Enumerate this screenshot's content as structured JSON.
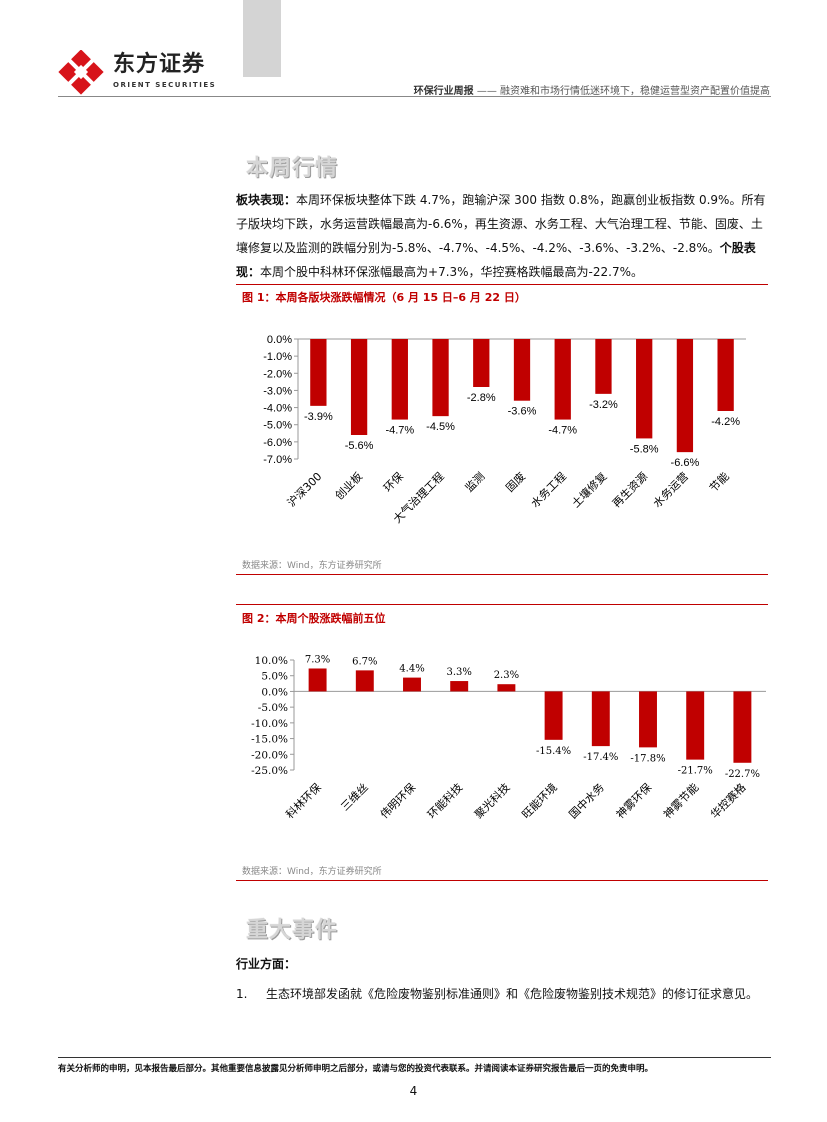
{
  "header": {
    "logo_cn": "东方证券",
    "logo_en": "ORIENT SECURITIES",
    "report_type": "环保行业周报",
    "report_subtitle": "—— 融资难和市场行情低迷环境下，稳健运营型资产配置价值提高"
  },
  "section1": {
    "title": "本周行情",
    "lead1": "板块表现：",
    "text1": "本周环保板块整体下跌 4.7%，跑输沪深 300 指数 0.8%，跑赢创业板指数 0.9%。所有子版块均下跌，水务运营跌幅最高为-6.6%，再生资源、水务工程、大气治理工程、节能、固废、土壤修复以及监测的跌幅分别为-5.8%、-4.7%、-4.5%、-4.2%、-3.6%、-3.2%、-2.8%。",
    "lead2": "个股表现：",
    "text2": "本周个股中科林环保涨幅最高为+7.3%，华控赛格跌幅最高为-22.7%。"
  },
  "figure1": {
    "title": "图 1：本周各版块涨跌幅情况（6 月 15 日–6 月 22 日）",
    "source": "数据来源：Wind，东方证券研究所"
  },
  "figure2": {
    "title": "图 2：本周个股涨跌幅前五位",
    "source": "数据来源：Wind，东方证券研究所"
  },
  "chart_data": [
    {
      "type": "bar",
      "categories": [
        "沪深300",
        "创业板",
        "环保",
        "大气治理工程",
        "监测",
        "固废",
        "水务工程",
        "土壤修复",
        "再生资源",
        "水务运营",
        "节能"
      ],
      "values": [
        -3.9,
        -5.6,
        -4.7,
        -4.5,
        -2.8,
        -3.6,
        -4.7,
        -3.2,
        -5.8,
        -6.6,
        -4.2
      ],
      "labels": [
        "-3.9%",
        "-5.6%",
        "-4.7%",
        "-4.5%",
        "-2.8%",
        "-3.6%",
        "-4.7%",
        "-3.2%",
        "-5.8%",
        "-6.6%",
        "-4.2%"
      ],
      "yticks": [
        "0.0%",
        "-1.0%",
        "-2.0%",
        "-3.0%",
        "-4.0%",
        "-5.0%",
        "-6.0%",
        "-7.0%"
      ],
      "ylim": [
        -7,
        0
      ],
      "color": "#c00000"
    },
    {
      "type": "bar",
      "categories": [
        "科林环保",
        "三维丝",
        "伟明环保",
        "环能科技",
        "聚光科技",
        "旺能环境",
        "国中水务",
        "神雾环保",
        "神雾节能",
        "华控赛格"
      ],
      "values": [
        7.3,
        6.7,
        4.4,
        3.3,
        2.3,
        -15.4,
        -17.4,
        -17.8,
        -21.7,
        -22.7
      ],
      "labels": [
        "7.3%",
        "6.7%",
        "4.4%",
        "3.3%",
        "2.3%",
        "-15.4%",
        "-17.4%",
        "-17.8%",
        "-21.7%",
        "-22.7%"
      ],
      "yticks": [
        "10.0%",
        "5.0%",
        "0.0%",
        "-5.0%",
        "-10.0%",
        "-15.0%",
        "-20.0%",
        "-25.0%"
      ],
      "ylim": [
        -25,
        10
      ],
      "color": "#c00000"
    }
  ],
  "section2": {
    "title": "重大事件",
    "subheading": "行业方面：",
    "item1_num": "1.",
    "item1_text": "生态环境部发函就《危险废物鉴别标准通则》和《危险废物鉴别技术规范》的修订征求意见。"
  },
  "footer": {
    "disclaimer": "有关分析师的申明，见本报告最后部分。其他重要信息披露见分析师申明之后部分，或请与您的投资代表联系。并请阅读本证券研究报告最后一页的免责申明。",
    "page": "4"
  }
}
